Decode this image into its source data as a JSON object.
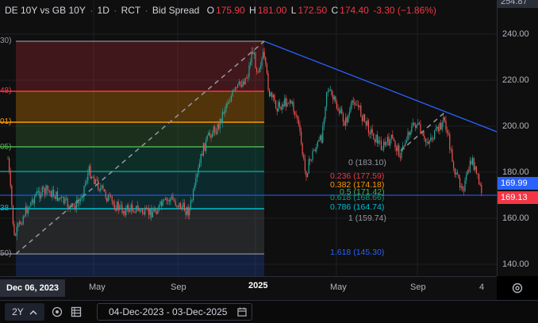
{
  "header": {
    "symbol": "DE 10Y vs GB 10Y",
    "interval": "1D",
    "source": "RCT",
    "quote_type": "Bid Spread",
    "o_label": "O",
    "o_value": "175.90",
    "h_label": "H",
    "h_value": "181.00",
    "l_label": "L",
    "l_value": "172.50",
    "c_label": "C",
    "c_value": "174.40",
    "change": "-3.30 (−1.86%)"
  },
  "price_axis": {
    "ticks": [
      "240.00",
      "220.00",
      "200.00",
      "180.00",
      "160.00",
      "140.00"
    ],
    "top_partial": "254.87",
    "last_price_label": "169.99",
    "current_price_label": "169.13",
    "last_price_color": "#2962ff",
    "current_price_color": "#f23645"
  },
  "time_axis": {
    "crosshair_date": "Dec 06, 2023",
    "ticks": [
      "May",
      "Sep",
      "2025",
      "May",
      "Sep",
      "4"
    ]
  },
  "fib_levels": [
    {
      "ratio": "0",
      "value": "(183.10)",
      "color": "#787b86"
    },
    {
      "ratio": "0.236",
      "value": "(177.59)",
      "color": "#f23645"
    },
    {
      "ratio": "0.382",
      "value": "(174.18)",
      "color": "#ff9800"
    },
    {
      "ratio": "0.5",
      "value": "(171.42)",
      "color": "#4caf50"
    },
    {
      "ratio": "0.618",
      "value": "(168.66)",
      "color": "#089981"
    },
    {
      "ratio": "0.786",
      "value": "(164.74)",
      "color": "#00bcd4"
    },
    {
      "ratio": "1",
      "value": "(159.74)",
      "color": "#787b86"
    },
    {
      "ratio": "1.618",
      "value": "(145.30)",
      "color": "#2962ff"
    }
  ],
  "left_edge_labels": [
    "30)",
    "48)",
    "01)",
    "05)",
    "38",
    "50)"
  ],
  "toolbar": {
    "range_label": "2Y",
    "date_range": "04-Dec-2023 - 03-Dec-2025"
  },
  "icons": {
    "range_chevron": "chevron-up-icon",
    "compare": "compare-icon",
    "indicators": "indicators-icon",
    "calendar": "calendar-icon",
    "settings": "gear-icon"
  }
}
